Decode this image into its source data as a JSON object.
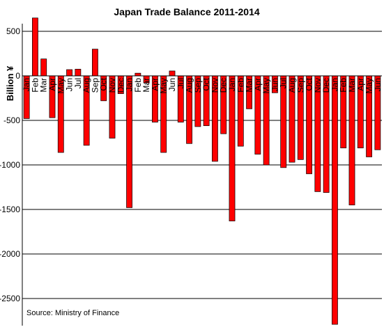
{
  "chart_data": {
    "type": "bar",
    "title": "Japan  Trade Balance 2011-2014",
    "xlabel": "",
    "ylabel": "Billion ¥",
    "ylim": [
      -2750,
      650
    ],
    "yticks": [
      500,
      0,
      -500,
      -1000,
      -1500,
      -2000,
      -2500
    ],
    "grid": true,
    "legend": "none",
    "bar_color": "#ff0000",
    "source": "Source: Ministry of Finance",
    "categories": [
      "Jan",
      "Feb",
      "Mar",
      "Apr",
      "May",
      "Jun",
      "Jul",
      "Aug",
      "Sep",
      "Oct",
      "Nov",
      "Dec",
      "Jan",
      "Feb",
      "Mar",
      "Apr",
      "May",
      "Jun",
      "Jul",
      "Aug",
      "Sep",
      "Oct",
      "Nov",
      "Dec",
      "Jan",
      "Feb",
      "Mar",
      "Apr",
      "May",
      "Jun",
      "Jul",
      "Aug",
      "Sep",
      "Oct",
      "Nov",
      "Dec",
      "Jan",
      "Feb",
      "Mar",
      "Apr",
      "May",
      "Jun"
    ],
    "values": [
      -480,
      650,
      190,
      -470,
      -860,
      70,
      75,
      -780,
      300,
      -280,
      -700,
      -200,
      -1480,
      30,
      -80,
      -520,
      -860,
      55,
      -520,
      -760,
      -570,
      -560,
      -960,
      -650,
      -1630,
      -790,
      -370,
      -880,
      -1000,
      -190,
      -1030,
      -970,
      -940,
      -1100,
      -1300,
      -1310,
      -2790,
      -810,
      -1450,
      -810,
      -910,
      -830
    ]
  }
}
